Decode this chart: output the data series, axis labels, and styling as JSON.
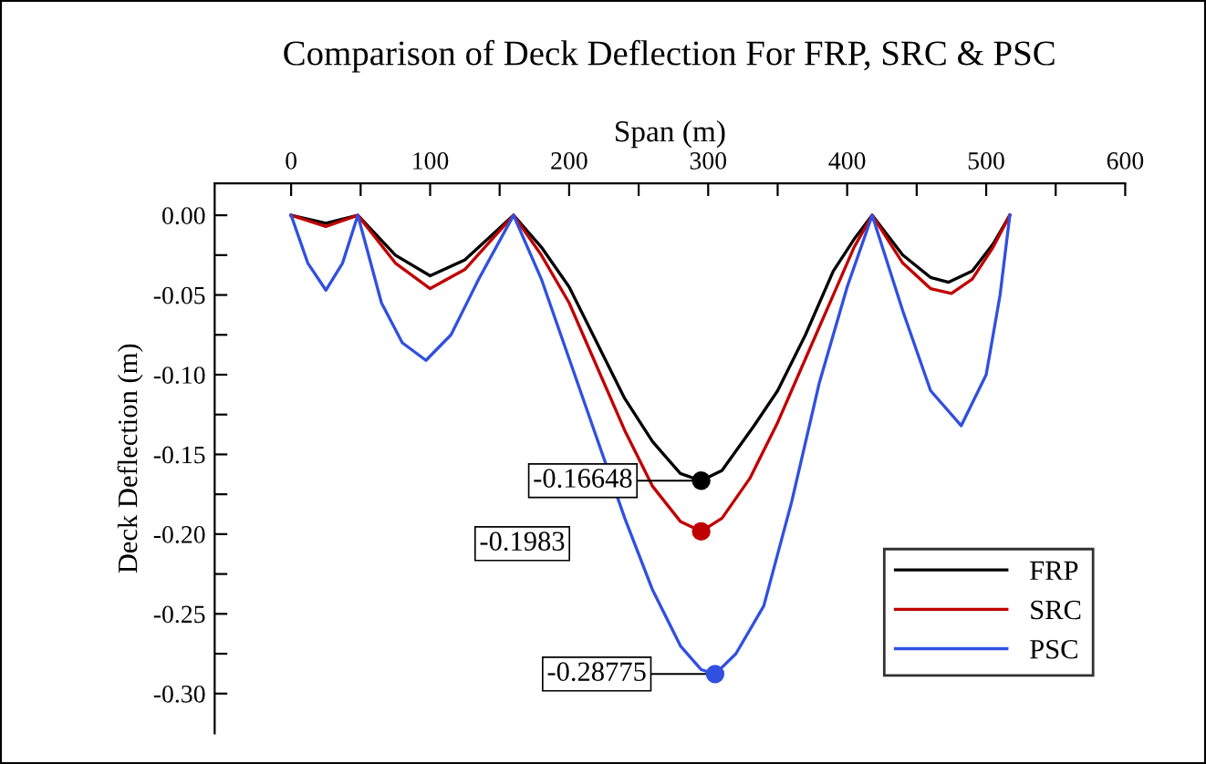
{
  "chart_data": {
    "type": "line",
    "title": "Comparison of Deck Deflection For FRP, SRC & PSC",
    "xlabel": "Span (m)",
    "ylabel": "Deck Deflection (m)",
    "xlim": [
      -55,
      600
    ],
    "xticks": [
      0,
      {
        "value": 50,
        "label": null
      },
      100,
      {
        "value": 150,
        "label": null
      },
      200,
      {
        "value": 250,
        "label": null
      },
      300,
      {
        "value": 350,
        "label": null
      },
      400,
      {
        "value": 450,
        "label": null
      },
      500,
      {
        "value": 550,
        "label": null
      },
      600
    ],
    "ylim": [
      -0.325,
      0.02
    ],
    "yticks": [
      {
        "value": 0,
        "label": "0.00"
      },
      {
        "value": -0.025,
        "label": null
      },
      {
        "value": -0.05,
        "label": "-0.05"
      },
      {
        "value": -0.075,
        "label": null
      },
      {
        "value": -0.1,
        "label": "-0.10"
      },
      {
        "value": -0.125,
        "label": null
      },
      {
        "value": -0.15,
        "label": "-0.15"
      },
      {
        "value": -0.175,
        "label": null
      },
      {
        "value": -0.2,
        "label": "-0.20"
      },
      {
        "value": -0.225,
        "label": null
      },
      {
        "value": -0.25,
        "label": "-0.25"
      },
      {
        "value": -0.275,
        "label": null
      },
      {
        "value": -0.3,
        "label": "-0.30"
      }
    ],
    "grid": false,
    "legend": "bottom right",
    "marker": "none",
    "line_style": "solid",
    "series": [
      {
        "name": "FRP",
        "color": "#000000",
        "x": [
          0,
          25,
          48,
          75,
          100,
          125,
          160,
          180,
          200,
          220,
          240,
          260,
          280,
          295,
          310,
          333,
          350,
          370,
          390,
          405,
          418,
          440,
          460,
          473,
          490,
          505,
          517
        ],
        "values": [
          0,
          -0.005,
          0,
          -0.025,
          -0.038,
          -0.028,
          0,
          -0.02,
          -0.045,
          -0.08,
          -0.115,
          -0.142,
          -0.162,
          -0.16648,
          -0.16,
          -0.132,
          -0.11,
          -0.075,
          -0.035,
          -0.015,
          0,
          -0.025,
          -0.039,
          -0.042,
          -0.035,
          -0.018,
          0
        ]
      },
      {
        "name": "SRC",
        "color": "#c00000",
        "x": [
          0,
          25,
          48,
          75,
          100,
          125,
          160,
          180,
          200,
          220,
          240,
          260,
          280,
          295,
          310,
          330,
          350,
          370,
          390,
          405,
          418,
          440,
          460,
          475,
          490,
          505,
          517
        ],
        "values": [
          0,
          -0.007,
          0,
          -0.03,
          -0.046,
          -0.034,
          0,
          -0.025,
          -0.055,
          -0.095,
          -0.135,
          -0.17,
          -0.192,
          -0.1983,
          -0.19,
          -0.165,
          -0.13,
          -0.09,
          -0.05,
          -0.02,
          0,
          -0.03,
          -0.046,
          -0.049,
          -0.04,
          -0.02,
          0
        ]
      },
      {
        "name": "PSC",
        "color": "#3050e0",
        "x": [
          0,
          12,
          25,
          37,
          48,
          65,
          80,
          97,
          115,
          135,
          160,
          180,
          200,
          220,
          240,
          260,
          280,
          295,
          305,
          320,
          340,
          360,
          380,
          400,
          418,
          440,
          460,
          482,
          500,
          510,
          517
        ],
        "values": [
          0,
          -0.03,
          -0.047,
          -0.03,
          0,
          -0.055,
          -0.08,
          -0.091,
          -0.075,
          -0.04,
          0,
          -0.04,
          -0.09,
          -0.14,
          -0.19,
          -0.235,
          -0.27,
          -0.285,
          -0.28775,
          -0.275,
          -0.245,
          -0.18,
          -0.105,
          -0.045,
          0,
          -0.06,
          -0.11,
          -0.132,
          -0.1,
          -0.05,
          0
        ]
      },
      {
        "type": "scatter",
        "marker": "circle",
        "x": [
          295,
          295,
          305
        ],
        "values": [
          -0.16648,
          -0.1983,
          -0.28775
        ],
        "colors": [
          "#000000",
          "#c00000",
          "#3050e0"
        ]
      }
    ],
    "annotations": [
      {
        "text": "-0.16648",
        "x": 295,
        "y": -0.16648
      },
      "-0.1983",
      {
        "text": "-0.28775",
        "x": 305,
        "y": -0.28775
      }
    ]
  }
}
